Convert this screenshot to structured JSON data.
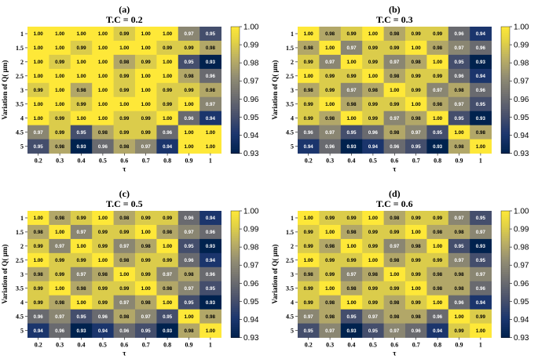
{
  "chart_data": [
    {
      "type": "heatmap",
      "panel": "(a)",
      "title": "T.C = 0.2",
      "xlabel": "τ",
      "ylabel": "Variation of Q( μm)",
      "x": [
        "0.2",
        "0.3",
        "0.4",
        "0.5",
        "0.6",
        "0.7",
        "0.8",
        "0.9",
        "1"
      ],
      "y": [
        "1",
        "1.5",
        "2",
        "2.5",
        "3",
        "3.5",
        "4",
        "4.5",
        "5"
      ],
      "values": [
        [
          "1.00",
          "1.00",
          "1.00",
          "1.00",
          "0.99",
          "1.00",
          "1.00",
          "0.97",
          "0.95"
        ],
        [
          "1.00",
          "1.00",
          "0.99",
          "1.00",
          "1.00",
          "1.00",
          "0.99",
          "0.99",
          "0.98"
        ],
        [
          "1.00",
          "0.99",
          "1.00",
          "1.00",
          "0.98",
          "0.99",
          "1.00",
          "0.95",
          "0.93"
        ],
        [
          "1.00",
          "1.00",
          "1.00",
          "1.00",
          "0.99",
          "1.00",
          "1.00",
          "0.98",
          "0.96"
        ],
        [
          "0.99",
          "1.00",
          "0.98",
          "1.00",
          "0.99",
          "1.00",
          "0.99",
          "0.99",
          "0.98"
        ],
        [
          "1.00",
          "1.00",
          "0.99",
          "1.00",
          "1.00",
          "1.00",
          "0.99",
          "1.00",
          "0.97"
        ],
        [
          "1.00",
          "0.99",
          "1.00",
          "1.00",
          "0.99",
          "0.99",
          "1.00",
          "0.96",
          "0.94"
        ],
        [
          "0.97",
          "0.99",
          "0.95",
          "0.98",
          "0.99",
          "0.99",
          "0.96",
          "1.00",
          "1.00"
        ],
        [
          "0.95",
          "0.98",
          "0.93",
          "0.96",
          "0.98",
          "0.97",
          "0.94",
          "1.00",
          "1.00"
        ]
      ],
      "colorbar": {
        "min": 0.93,
        "max": 1.0,
        "ticks": [
          "1.00",
          "0.99",
          "0.98",
          "0.97",
          "0.96",
          "0.95",
          "0.94",
          "0.93"
        ]
      }
    },
    {
      "type": "heatmap",
      "panel": "(b)",
      "title": "T.C = 0.3",
      "xlabel": "τ",
      "ylabel": "Variation of Q( μm)",
      "x": [
        "0.2",
        "0.3",
        "0.4",
        "0.5",
        "0.6",
        "0.7",
        "0.8",
        "0.9",
        "1"
      ],
      "y": [
        "1",
        "1.5",
        "2",
        "2.5",
        "3",
        "3.5",
        "4",
        "4.5",
        "5"
      ],
      "values": [
        [
          "1.00",
          "0.98",
          "0.99",
          "1.00",
          "0.98",
          "0.99",
          "0.99",
          "0.96",
          "0.94"
        ],
        [
          "0.98",
          "1.00",
          "0.97",
          "0.99",
          "0.99",
          "1.00",
          "0.98",
          "0.97",
          "0.96"
        ],
        [
          "0.99",
          "0.97",
          "1.00",
          "0.99",
          "0.97",
          "0.98",
          "1.00",
          "0.95",
          "0.93"
        ],
        [
          "1.00",
          "0.99",
          "0.99",
          "1.00",
          "0.98",
          "0.99",
          "0.99",
          "0.96",
          "0.94"
        ],
        [
          "0.98",
          "0.99",
          "0.97",
          "0.98",
          "1.00",
          "0.99",
          "0.97",
          "0.98",
          "0.96"
        ],
        [
          "0.99",
          "1.00",
          "0.98",
          "0.99",
          "0.99",
          "1.00",
          "0.98",
          "0.97",
          "0.95"
        ],
        [
          "0.99",
          "0.98",
          "1.00",
          "0.99",
          "0.97",
          "0.98",
          "1.00",
          "0.95",
          "0.93"
        ],
        [
          "0.96",
          "0.97",
          "0.95",
          "0.96",
          "0.98",
          "0.97",
          "0.95",
          "1.00",
          "0.98"
        ],
        [
          "0.94",
          "0.96",
          "0.93",
          "0.94",
          "0.96",
          "0.95",
          "0.93",
          "0.98",
          "1.00"
        ]
      ],
      "colorbar": {
        "min": 0.93,
        "max": 1.0,
        "ticks": [
          "1.00",
          "0.99",
          "0.98",
          "0.97",
          "0.96",
          "0.95",
          "0.94",
          "0.93"
        ]
      }
    },
    {
      "type": "heatmap",
      "panel": "(c)",
      "title": "T.C = 0.5",
      "xlabel": "τ",
      "ylabel": "Variation of Q( μm)",
      "x": [
        "0.2",
        "0.3",
        "0.4",
        "0.5",
        "0.6",
        "0.7",
        "0.8",
        "0.9",
        "1"
      ],
      "y": [
        "1",
        "1.5",
        "2",
        "2.5",
        "3",
        "3.5",
        "4",
        "4.5",
        "5"
      ],
      "values": [
        [
          "1.00",
          "0.98",
          "0.99",
          "1.00",
          "0.98",
          "0.99",
          "0.99",
          "0.96",
          "0.94"
        ],
        [
          "0.98",
          "1.00",
          "0.97",
          "0.99",
          "0.99",
          "1.00",
          "0.98",
          "0.97",
          "0.96"
        ],
        [
          "0.99",
          "0.97",
          "1.00",
          "0.99",
          "0.97",
          "0.98",
          "1.00",
          "0.95",
          "0.93"
        ],
        [
          "1.00",
          "0.99",
          "0.99",
          "1.00",
          "0.98",
          "0.99",
          "0.99",
          "0.96",
          "0.94"
        ],
        [
          "0.98",
          "0.99",
          "0.97",
          "0.98",
          "1.00",
          "0.99",
          "0.97",
          "0.98",
          "0.96"
        ],
        [
          "0.99",
          "1.00",
          "0.98",
          "0.99",
          "0.99",
          "1.00",
          "0.98",
          "0.97",
          "0.95"
        ],
        [
          "0.99",
          "0.98",
          "1.00",
          "0.99",
          "0.97",
          "0.98",
          "1.00",
          "0.95",
          "0.93"
        ],
        [
          "0.96",
          "0.97",
          "0.95",
          "0.96",
          "0.98",
          "0.97",
          "0.95",
          "1.00",
          "0.98"
        ],
        [
          "0.94",
          "0.96",
          "0.93",
          "0.94",
          "0.96",
          "0.95",
          "0.93",
          "0.98",
          "1.00"
        ]
      ],
      "colorbar": {
        "min": 0.93,
        "max": 1.0,
        "ticks": [
          "1.00",
          "0.99",
          "0.98",
          "0.97",
          "0.96",
          "0.95",
          "0.94",
          "0.93"
        ]
      }
    },
    {
      "type": "heatmap",
      "panel": "(d)",
      "title": "T.C = 0.6",
      "xlabel": "τ",
      "ylabel": "Variation of Q( μm)",
      "x": [
        "0.2",
        "0.3",
        "0.4",
        "0.5",
        "0.6",
        "0.7",
        "0.8",
        "0.9",
        "1"
      ],
      "y": [
        "1",
        "1.5",
        "2",
        "2.5",
        "3",
        "3.5",
        "4",
        "4.5",
        "5"
      ],
      "values": [
        [
          "1.00",
          "0.99",
          "0.99",
          "1.00",
          "0.98",
          "0.99",
          "0.99",
          "0.97",
          "0.95"
        ],
        [
          "0.99",
          "1.00",
          "0.98",
          "0.99",
          "0.99",
          "1.00",
          "0.98",
          "0.98",
          "0.97"
        ],
        [
          "0.99",
          "0.98",
          "1.00",
          "0.99",
          "0.97",
          "0.98",
          "1.00",
          "0.95",
          "0.93"
        ],
        [
          "1.00",
          "0.99",
          "0.99",
          "1.00",
          "0.98",
          "0.99",
          "0.99",
          "0.97",
          "0.95"
        ],
        [
          "0.98",
          "0.99",
          "0.97",
          "0.98",
          "1.00",
          "0.99",
          "0.98",
          "0.98",
          "0.97"
        ],
        [
          "0.99",
          "1.00",
          "0.98",
          "0.99",
          "0.99",
          "1.00",
          "0.98",
          "0.98",
          "0.96"
        ],
        [
          "0.99",
          "0.98",
          "1.00",
          "0.99",
          "0.98",
          "0.99",
          "1.00",
          "0.96",
          "0.94"
        ],
        [
          "0.97",
          "0.98",
          "0.95",
          "0.97",
          "0.98",
          "0.98",
          "0.96",
          "1.00",
          "0.99"
        ],
        [
          "0.95",
          "0.97",
          "0.93",
          "0.95",
          "0.97",
          "0.96",
          "0.94",
          "0.99",
          "1.00"
        ]
      ],
      "colorbar": {
        "min": 0.93,
        "max": 1.0,
        "ticks": [
          "1.00",
          "0.99",
          "0.98",
          "0.97",
          "0.96",
          "0.95",
          "0.94",
          "0.93"
        ]
      }
    }
  ]
}
